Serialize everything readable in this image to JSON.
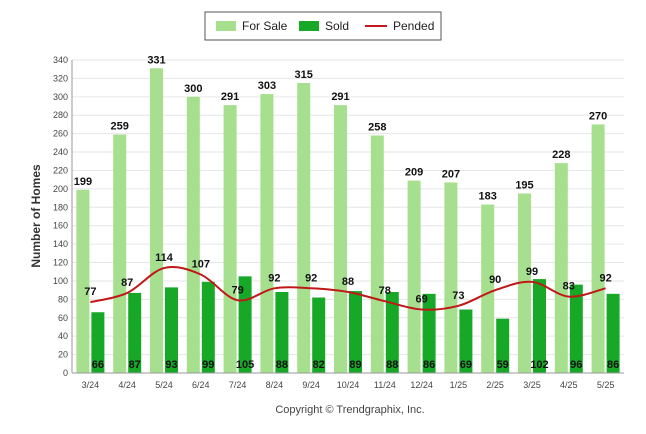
{
  "chart_data": {
    "type": "bar",
    "ylabel": "Number of Homes",
    "ylim": [
      0,
      340
    ],
    "yticks": [
      0,
      20,
      40,
      60,
      80,
      100,
      120,
      140,
      160,
      180,
      200,
      220,
      240,
      260,
      280,
      300,
      320,
      340
    ],
    "grid": true,
    "legend_position": "top-center",
    "categories": [
      "3/24",
      "4/24",
      "5/24",
      "6/24",
      "7/24",
      "8/24",
      "9/24",
      "10/24",
      "11/24",
      "12/24",
      "1/25",
      "2/25",
      "3/25",
      "4/25",
      "5/25"
    ],
    "series": [
      {
        "name": "For Sale",
        "type": "bar",
        "color": "#a6e08e",
        "values": [
          199,
          259,
          331,
          300,
          291,
          303,
          315,
          291,
          258,
          209,
          207,
          183,
          195,
          228,
          270
        ]
      },
      {
        "name": "Sold",
        "type": "bar",
        "color": "#18a828",
        "values": [
          66,
          87,
          93,
          99,
          105,
          88,
          82,
          89,
          88,
          86,
          69,
          59,
          102,
          96,
          86
        ]
      },
      {
        "name": "Pended",
        "type": "line",
        "color": "#c01818",
        "values": [
          77,
          87,
          114,
          107,
          79,
          92,
          92,
          88,
          78,
          69,
          73,
          90,
          99,
          83,
          92
        ]
      }
    ]
  },
  "footer": {
    "copyright": "Copyright © Trendgraphix, Inc."
  }
}
